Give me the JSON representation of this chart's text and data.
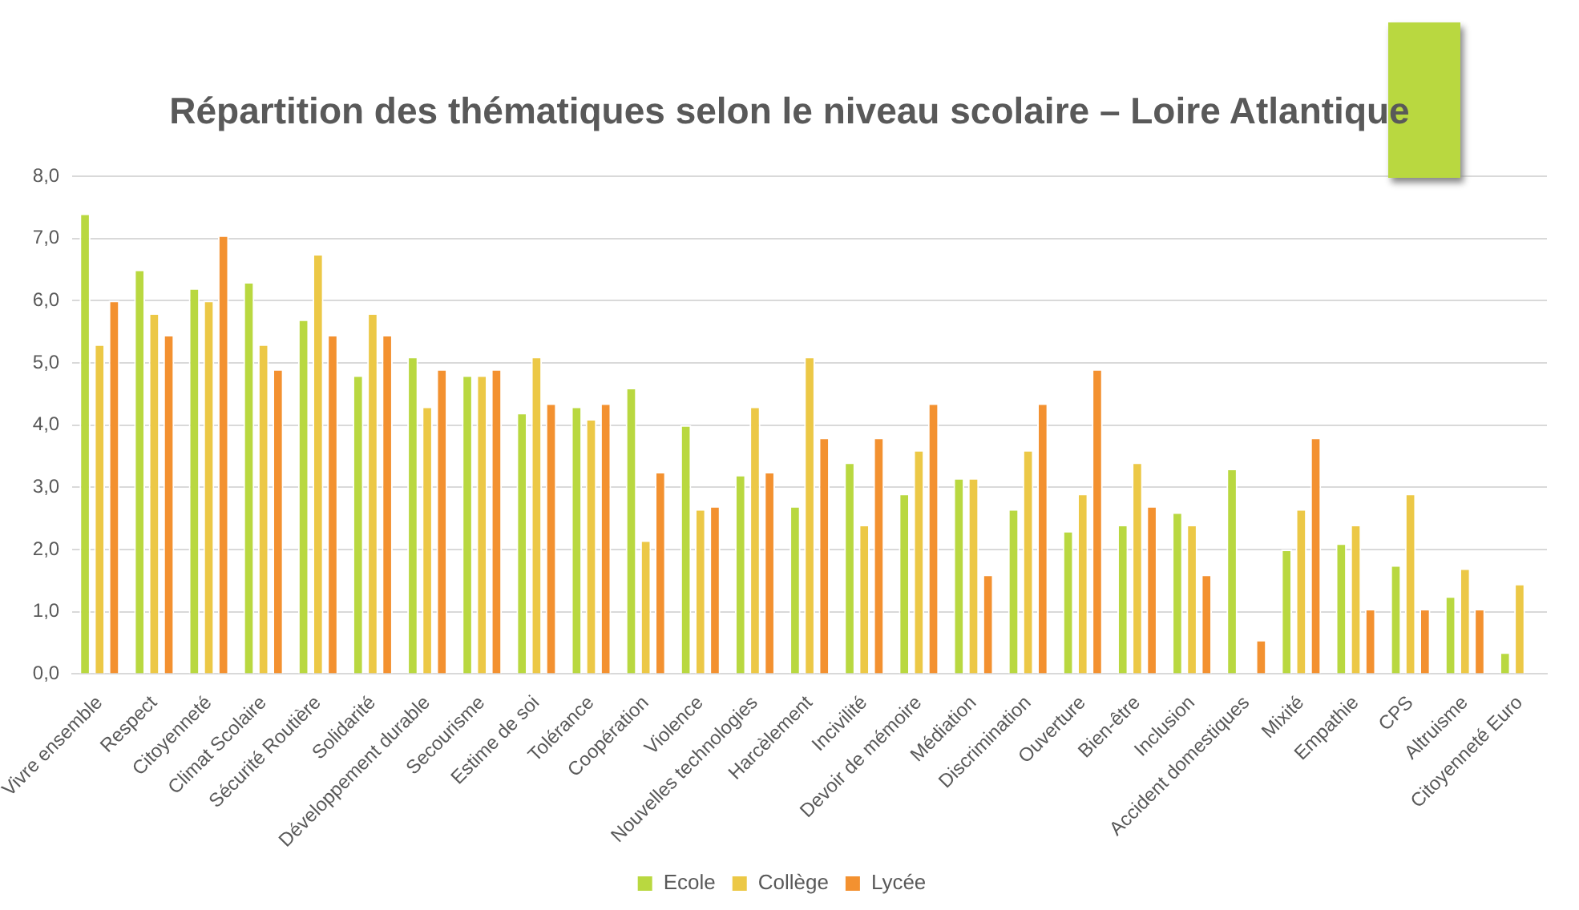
{
  "chart_data": {
    "type": "bar",
    "title": "Répartition des thématiques selon le niveau scolaire – Loire Atlantique",
    "categories": [
      "Vivre ensemble",
      "Respect",
      "Citoyenneté",
      "Climat Scolaire",
      "Sécurité Routière",
      "Solidarité",
      "Développement durable",
      "Secourisme",
      "Estime de soi",
      "Tolérance",
      "Coopération",
      "Violence",
      "Nouvelles technologies",
      "Harcèlement",
      "Incivilité",
      "Devoir de mémoire",
      "Médiation",
      "Discrimination",
      "Ouverture",
      "Bien-être",
      "Inclusion",
      "Accident domestiques",
      "Mixité",
      "Empathie",
      "CPS",
      "Altruisme",
      "Citoyenneté Euro"
    ],
    "series": [
      {
        "name": "Ecole",
        "color": "#b9d840",
        "values": [
          7.4,
          6.5,
          6.2,
          6.3,
          5.7,
          4.8,
          5.1,
          4.8,
          4.2,
          4.3,
          4.6,
          4.0,
          3.2,
          2.7,
          3.4,
          2.9,
          3.15,
          2.65,
          2.3,
          2.4,
          2.6,
          3.3,
          2.0,
          2.1,
          1.75,
          1.25,
          0.35
        ]
      },
      {
        "name": "Collège",
        "color": "#ecc846",
        "values": [
          5.3,
          5.8,
          6.0,
          5.3,
          6.75,
          5.8,
          4.3,
          4.8,
          5.1,
          4.1,
          2.15,
          2.65,
          4.3,
          5.1,
          2.4,
          3.6,
          3.15,
          3.6,
          2.9,
          3.4,
          2.4,
          null,
          2.65,
          2.4,
          2.9,
          1.7,
          1.45
        ]
      },
      {
        "name": "Lycée",
        "color": "#f39130",
        "values": [
          6.0,
          5.45,
          7.05,
          4.9,
          5.45,
          5.45,
          4.9,
          4.9,
          4.35,
          4.35,
          3.25,
          2.7,
          3.25,
          3.8,
          3.8,
          4.35,
          1.6,
          4.35,
          4.9,
          2.7,
          1.6,
          0.55,
          3.8,
          1.05,
          1.05,
          1.05,
          null
        ]
      }
    ],
    "ylim": [
      0,
      8
    ],
    "yticks": [
      {
        "value": 0,
        "label": "0,0"
      },
      {
        "value": 1,
        "label": "1,0"
      },
      {
        "value": 2,
        "label": "2,0"
      },
      {
        "value": 3,
        "label": "3,0"
      },
      {
        "value": 4,
        "label": "4,0"
      },
      {
        "value": 5,
        "label": "5,0"
      },
      {
        "value": 6,
        "label": "6,0"
      },
      {
        "value": 7,
        "label": "7,0"
      },
      {
        "value": 8,
        "label": "8,0"
      }
    ],
    "grid": "y",
    "legend": "bottom"
  }
}
